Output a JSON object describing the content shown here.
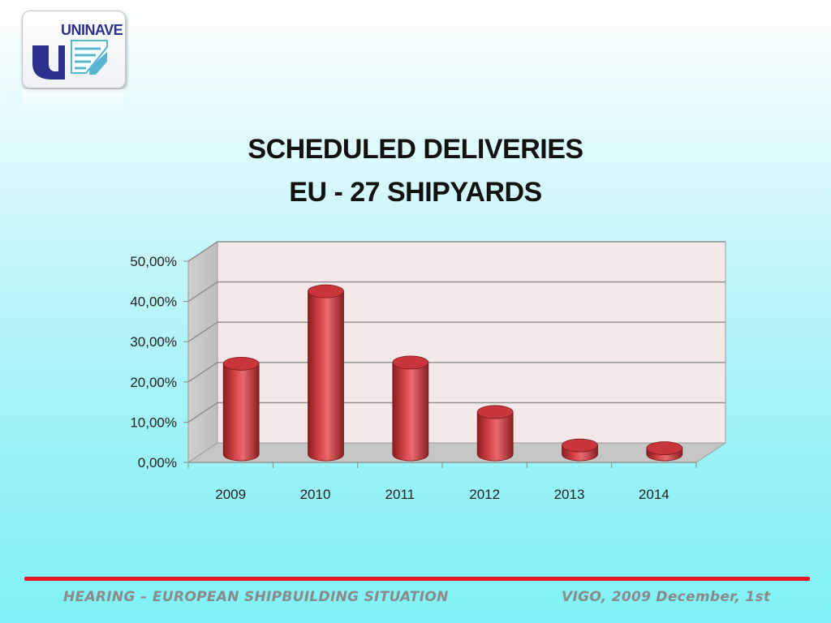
{
  "logo": {
    "text": "UNINAVE"
  },
  "title_line1": "SCHEDULED DELIVERIES",
  "title_line2": "EU - 27 SHIPYARDS",
  "footer": {
    "left": "HEARING – EUROPEAN SHIPBUILDING SITUATION",
    "right": "VIGO, 2009 December, 1st"
  },
  "colors": {
    "bar": "#c8353a",
    "footer_line": "#e8161b"
  },
  "chart_data": {
    "type": "bar",
    "categories": [
      "2009",
      "2010",
      "2011",
      "2012",
      "2013",
      "2014"
    ],
    "values": [
      22.5,
      40.5,
      22.8,
      10.5,
      2.2,
      1.5
    ],
    "ylim": [
      0,
      50
    ],
    "yticks": [
      "0,00%",
      "10,00%",
      "20,00%",
      "30,00%",
      "40,00%",
      "50,00%"
    ],
    "grid": true,
    "legend": "none"
  }
}
